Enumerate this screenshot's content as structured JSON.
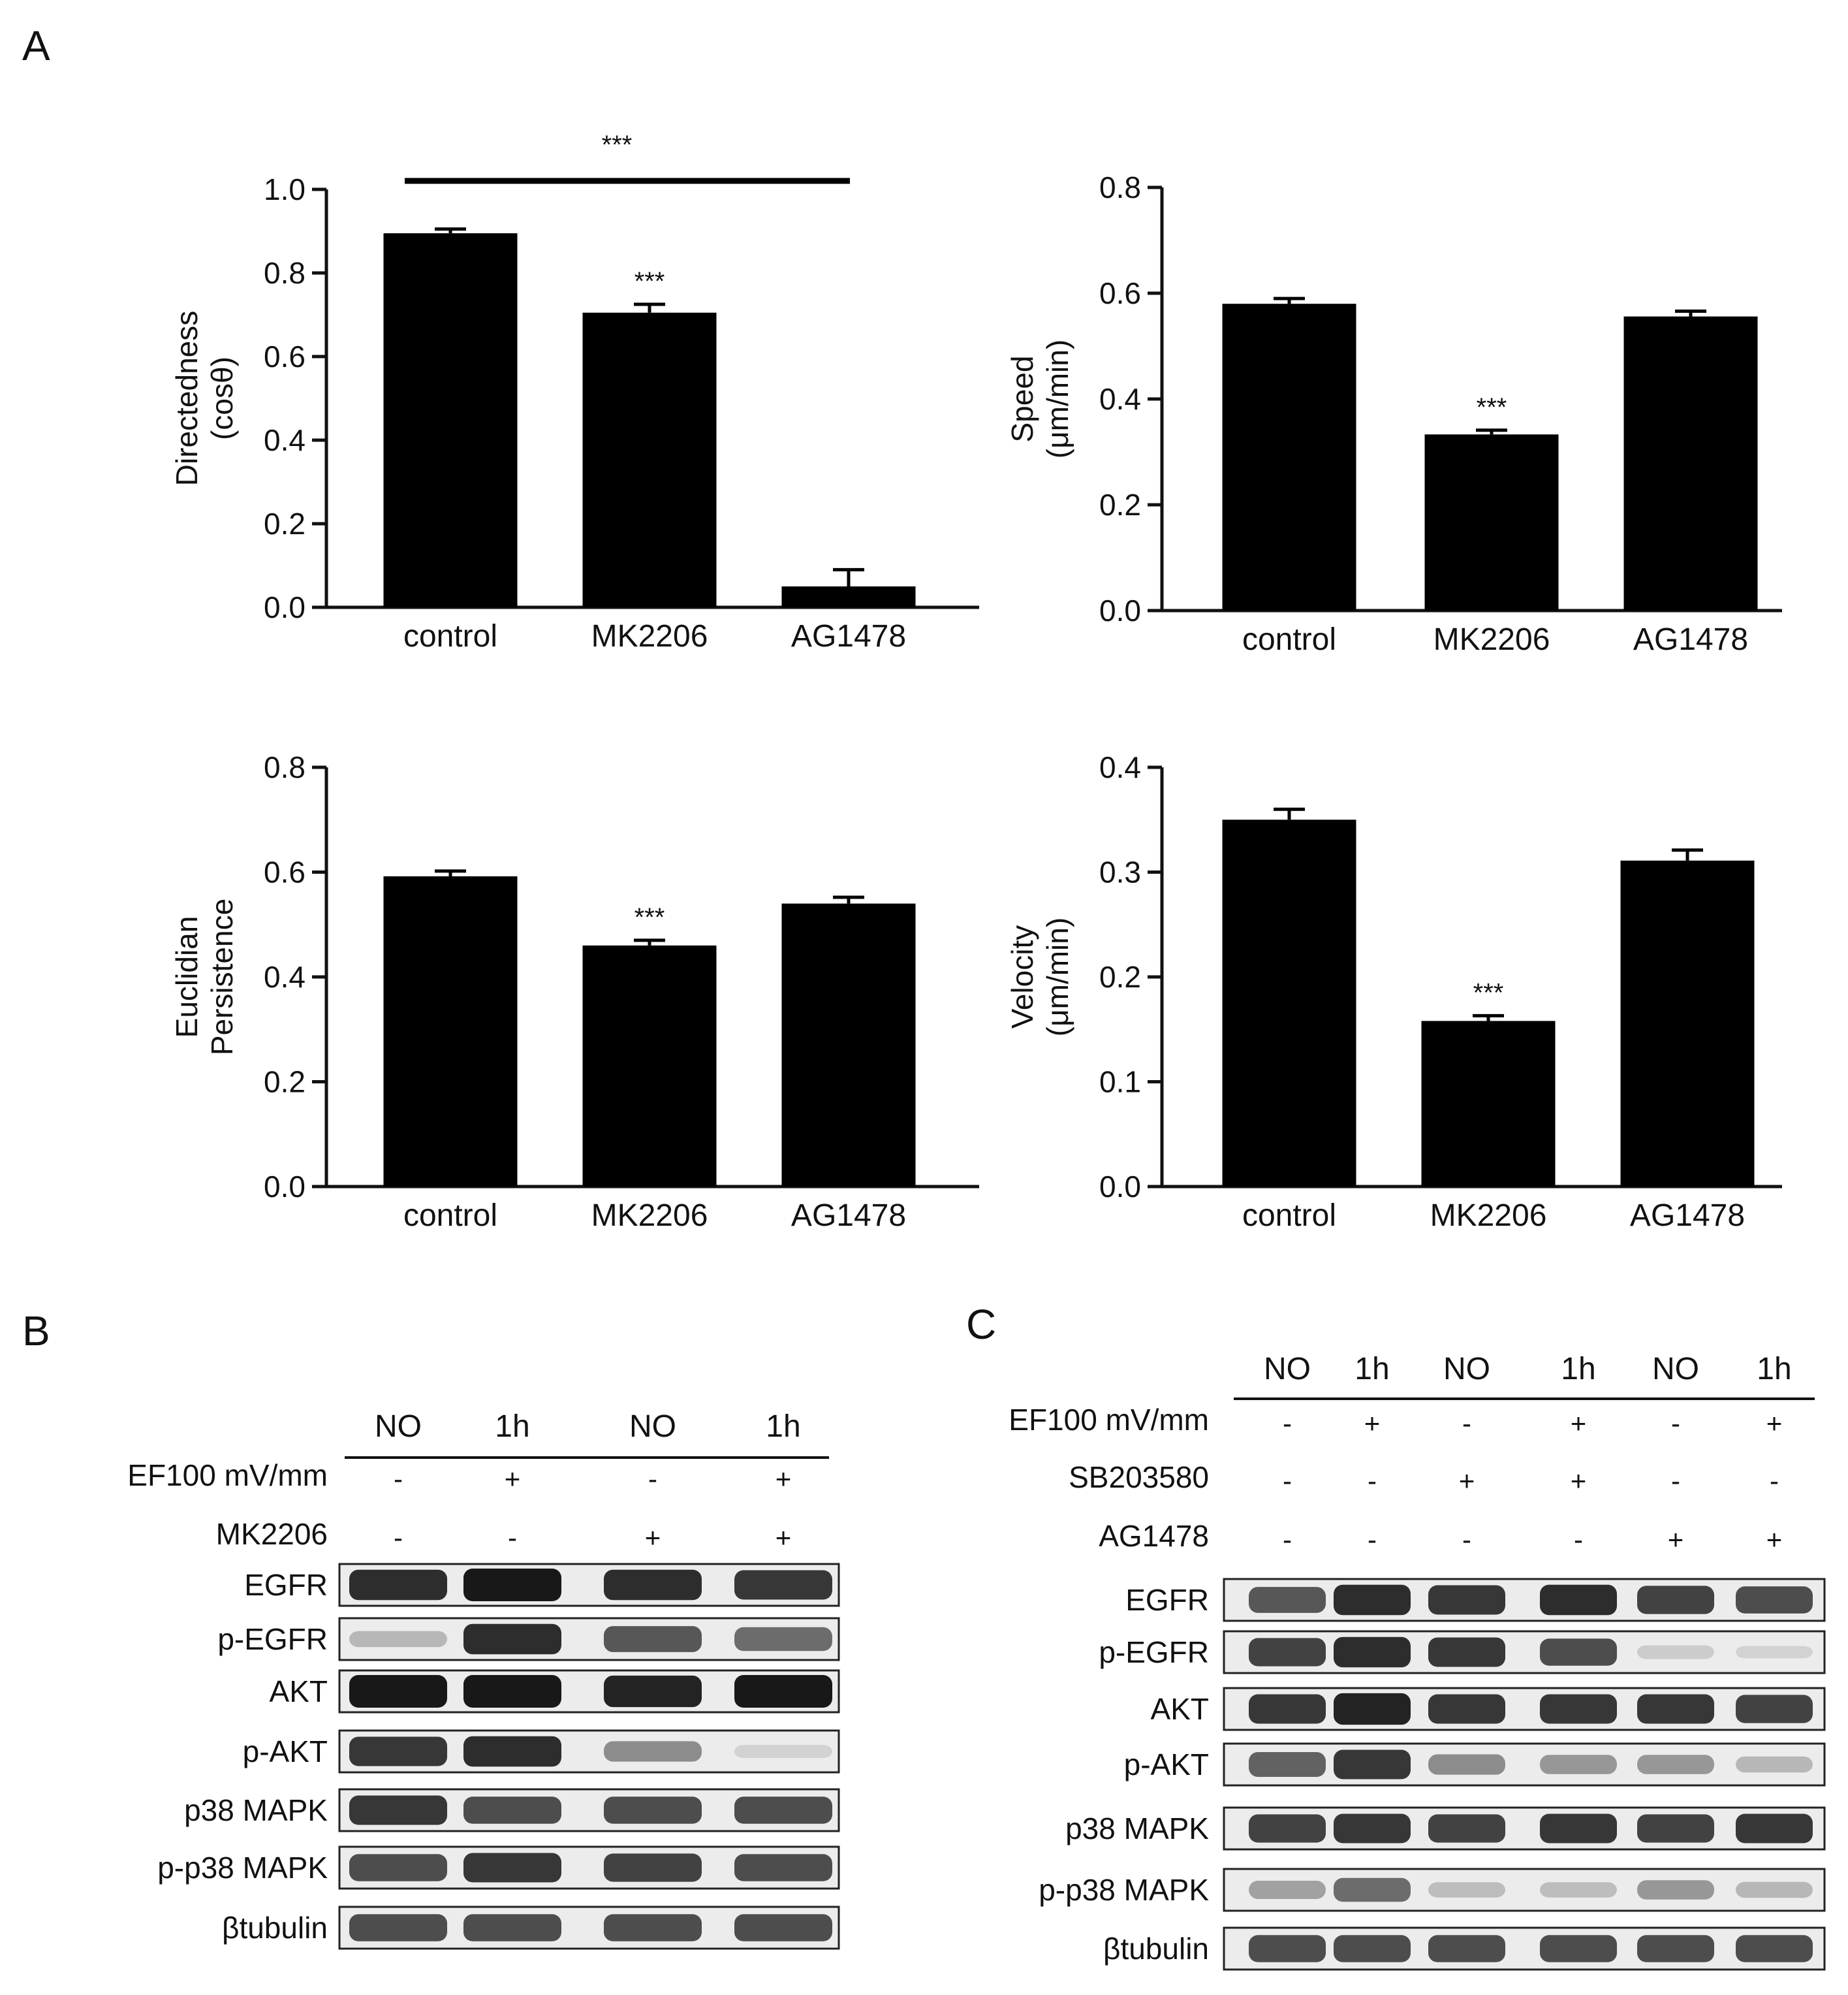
{
  "panels": {
    "a": "A",
    "b": "B",
    "c": "C"
  },
  "chart_data": [
    {
      "type": "bar",
      "categories": [
        "control",
        "MK2206",
        "AG1478"
      ],
      "values": [
        0.895,
        0.705,
        0.05
      ],
      "errors": [
        0.01,
        0.02,
        0.04
      ],
      "ylabel_lines": [
        "Directedness",
        "(cosθ)"
      ],
      "ylim": [
        0,
        1.0
      ],
      "ticks": [
        "0.0",
        "0.2",
        "0.4",
        "0.6",
        "0.8",
        "1.0"
      ],
      "stars": [
        "",
        "***",
        ""
      ],
      "bracket": {
        "from": 0,
        "to": 2,
        "label": "***"
      }
    },
    {
      "type": "bar",
      "categories": [
        "control",
        "MK2206",
        "AG1478"
      ],
      "values": [
        0.58,
        0.333,
        0.556
      ],
      "errors": [
        0.01,
        0.008,
        0.01
      ],
      "ylabel_lines": [
        "Speed",
        "(μm/min)"
      ],
      "ylim": [
        0,
        0.8
      ],
      "ticks": [
        "0.0",
        "0.2",
        "0.4",
        "0.6",
        "0.8"
      ],
      "stars": [
        "",
        "***",
        ""
      ]
    },
    {
      "type": "bar",
      "categories": [
        "control",
        "MK2206",
        "AG1478"
      ],
      "values": [
        0.592,
        0.46,
        0.54
      ],
      "errors": [
        0.01,
        0.01,
        0.012
      ],
      "ylabel_lines": [
        "Euclidian",
        "Persistence"
      ],
      "ylim": [
        0,
        0.8
      ],
      "ticks": [
        "0.0",
        "0.2",
        "0.4",
        "0.6",
        "0.8"
      ],
      "stars": [
        "",
        "***",
        ""
      ]
    },
    {
      "type": "bar",
      "categories": [
        "control",
        "MK2206",
        "AG1478"
      ],
      "values": [
        0.35,
        0.158,
        0.311
      ],
      "errors": [
        0.01,
        0.005,
        0.01
      ],
      "ylabel_lines": [
        "Velocity",
        "(μm/min)"
      ],
      "ylim": [
        0,
        0.4
      ],
      "ticks": [
        "0.0",
        "0.1",
        "0.2",
        "0.3",
        "0.4"
      ],
      "stars": [
        "",
        "***",
        ""
      ]
    }
  ],
  "blot_b": {
    "time_labels": [
      "NO",
      "1h",
      "NO",
      "1h"
    ],
    "treatments": [
      {
        "label": "EF100 mV/mm",
        "signs": [
          "-",
          "+",
          "-",
          "+"
        ]
      },
      {
        "label": "MK2206",
        "signs": [
          "-",
          "-",
          "+",
          "+"
        ]
      }
    ],
    "proteins": [
      "EGFR",
      "p-EGFR",
      "AKT",
      "p-AKT",
      "p38 MAPK",
      "p-p38 MAPK",
      "βtubulin"
    ],
    "band_strength": [
      [
        0.9,
        1.0,
        0.9,
        0.85
      ],
      [
        0.25,
        0.9,
        0.7,
        0.6
      ],
      [
        1.0,
        1.0,
        0.95,
        1.0
      ],
      [
        0.85,
        0.9,
        0.45,
        0.12
      ],
      [
        0.85,
        0.75,
        0.75,
        0.75
      ],
      [
        0.75,
        0.85,
        0.8,
        0.75
      ],
      [
        0.75,
        0.75,
        0.75,
        0.75
      ]
    ]
  },
  "blot_c": {
    "time_labels": [
      "NO",
      "1h",
      "NO",
      "1h",
      "NO",
      "1h"
    ],
    "treatments": [
      {
        "label": "EF100 mV/mm",
        "signs": [
          "-",
          "+",
          "-",
          "+",
          "-",
          "+"
        ]
      },
      {
        "label": "SB203580",
        "signs": [
          "-",
          "-",
          "+",
          "+",
          "-",
          "-"
        ]
      },
      {
        "label": "AG1478",
        "signs": [
          "-",
          "-",
          "-",
          "-",
          "+",
          "+"
        ]
      }
    ],
    "proteins": [
      "EGFR",
      "p-EGFR",
      "AKT",
      "p-AKT",
      "p38 MAPK",
      "p-p38 MAPK",
      "βtubulin"
    ],
    "band_strength": [
      [
        0.7,
        0.9,
        0.85,
        0.9,
        0.8,
        0.75
      ],
      [
        0.8,
        0.9,
        0.85,
        0.75,
        0.15,
        0.08
      ],
      [
        0.85,
        0.95,
        0.85,
        0.85,
        0.85,
        0.8
      ],
      [
        0.65,
        0.85,
        0.45,
        0.4,
        0.4,
        0.25
      ],
      [
        0.8,
        0.85,
        0.8,
        0.85,
        0.8,
        0.85
      ],
      [
        0.35,
        0.6,
        0.22,
        0.22,
        0.4,
        0.25
      ],
      [
        0.75,
        0.75,
        0.75,
        0.75,
        0.75,
        0.75
      ]
    ]
  },
  "colors": {
    "bar": "#000000",
    "axis": "#111111",
    "band": "#181818",
    "blot_bg": "#ececec"
  }
}
